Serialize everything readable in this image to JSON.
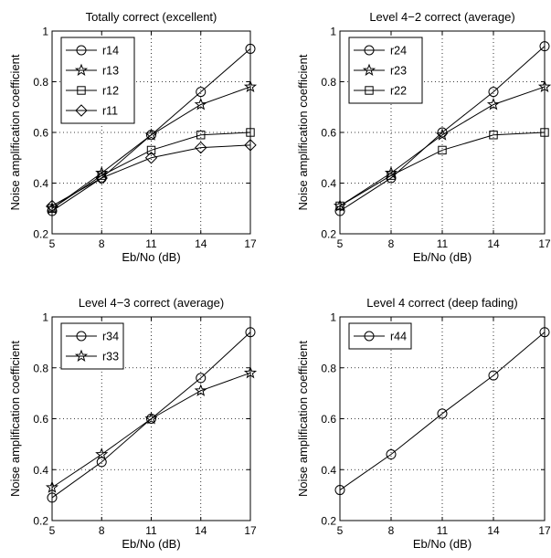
{
  "chart_data": [
    {
      "type": "line",
      "title": "Totally correct (excellent)",
      "xlabel": "Eb/No (dB)",
      "ylabel": "Noise amplification coefficient",
      "x": [
        5,
        8,
        11,
        14,
        17
      ],
      "xticks": [
        "5",
        "8",
        "11",
        "14",
        "17"
      ],
      "yticks": [
        "0.2",
        "0.4",
        "0.6",
        "0.8",
        "1"
      ],
      "xlim": [
        5,
        17
      ],
      "ylim": [
        0.2,
        1.0
      ],
      "grid": true,
      "legend": "top-left",
      "series": [
        {
          "name": "r14",
          "marker": "circle",
          "values": [
            0.29,
            0.42,
            0.59,
            0.76,
            0.93
          ]
        },
        {
          "name": "r13",
          "marker": "star",
          "values": [
            0.3,
            0.44,
            0.59,
            0.71,
            0.78
          ]
        },
        {
          "name": "r12",
          "marker": "square",
          "values": [
            0.3,
            0.43,
            0.53,
            0.59,
            0.6
          ]
        },
        {
          "name": "r11",
          "marker": "diamond",
          "values": [
            0.31,
            0.42,
            0.5,
            0.54,
            0.55
          ]
        }
      ]
    },
    {
      "type": "line",
      "title": "Level 4−2  correct (average)",
      "xlabel": "Eb/No (dB)",
      "ylabel": "Noise amplification coefficient",
      "x": [
        5,
        8,
        11,
        14,
        17
      ],
      "xticks": [
        "5",
        "8",
        "11",
        "14",
        "17"
      ],
      "yticks": [
        "0.2",
        "0.4",
        "0.6",
        "0.8",
        "1"
      ],
      "xlim": [
        5,
        17
      ],
      "ylim": [
        0.2,
        1.0
      ],
      "grid": true,
      "legend": "top-left",
      "series": [
        {
          "name": "r24",
          "marker": "circle",
          "values": [
            0.29,
            0.42,
            0.6,
            0.76,
            0.94
          ]
        },
        {
          "name": "r23",
          "marker": "star",
          "values": [
            0.31,
            0.44,
            0.59,
            0.71,
            0.78
          ]
        },
        {
          "name": "r22",
          "marker": "square",
          "values": [
            0.31,
            0.43,
            0.53,
            0.59,
            0.6
          ]
        }
      ]
    },
    {
      "type": "line",
      "title": "Level 4−3  correct (average)",
      "xlabel": "Eb/No (dB)",
      "ylabel": "Noise amplification coefficient",
      "x": [
        5,
        8,
        11,
        14,
        17
      ],
      "xticks": [
        "5",
        "8",
        "11",
        "14",
        "17"
      ],
      "yticks": [
        "0.2",
        "0.4",
        "0.6",
        "0.8",
        "1"
      ],
      "xlim": [
        5,
        17
      ],
      "ylim": [
        0.2,
        1.0
      ],
      "grid": true,
      "legend": "top-left",
      "series": [
        {
          "name": "r34",
          "marker": "circle",
          "values": [
            0.29,
            0.43,
            0.6,
            0.76,
            0.94
          ]
        },
        {
          "name": "r33",
          "marker": "star",
          "values": [
            0.33,
            0.46,
            0.6,
            0.71,
            0.78
          ]
        }
      ]
    },
    {
      "type": "line",
      "title": "Level 4 correct (deep fading)",
      "xlabel": "Eb/No (dB)",
      "ylabel": "Noise amplification coefficient",
      "x": [
        5,
        8,
        11,
        14,
        17
      ],
      "xticks": [
        "5",
        "8",
        "11",
        "14",
        "17"
      ],
      "yticks": [
        "0.2",
        "0.4",
        "0.6",
        "0.8",
        "1"
      ],
      "xlim": [
        5,
        17
      ],
      "ylim": [
        0.2,
        1.0
      ],
      "grid": true,
      "legend": "top-left",
      "series": [
        {
          "name": "r44",
          "marker": "circle",
          "values": [
            0.32,
            0.46,
            0.62,
            0.77,
            0.94
          ]
        }
      ]
    }
  ]
}
